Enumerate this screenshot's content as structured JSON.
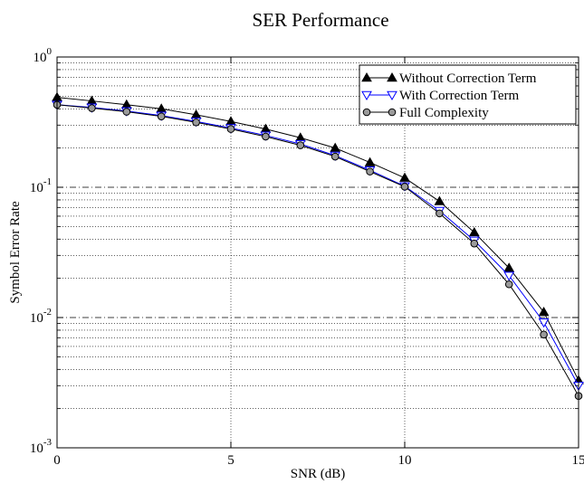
{
  "chart_data": {
    "type": "line",
    "title": "SER Performance",
    "xlabel": "SNR (dB)",
    "ylabel": "Symbol Error Rate",
    "xlim": [
      0,
      15
    ],
    "ylim": [
      0.001,
      1
    ],
    "yscale": "log",
    "grid": true,
    "legend_position": "top-right",
    "x_ticks": [
      "0",
      "5",
      "10",
      "15"
    ],
    "y_ticks": [
      {
        "base": "10",
        "exp": "0",
        "value": 1
      },
      {
        "base": "10",
        "exp": "-1",
        "value": 0.1
      },
      {
        "base": "10",
        "exp": "-2",
        "value": 0.01
      },
      {
        "base": "10",
        "exp": "-3",
        "value": 0.001
      }
    ],
    "x": [
      0,
      1,
      2,
      3,
      4,
      5,
      6,
      7,
      8,
      9,
      10,
      11,
      12,
      13,
      14,
      15
    ],
    "series": [
      {
        "name": "Without Correction Term",
        "color": "#000000",
        "marker": "triangle-up-filled",
        "values": [
          0.49,
          0.46,
          0.43,
          0.4,
          0.36,
          0.32,
          0.28,
          0.24,
          0.2,
          0.155,
          0.118,
          0.078,
          0.045,
          0.024,
          0.011,
          0.0033
        ]
      },
      {
        "name": "With Correction Term",
        "color": "#0000ff",
        "marker": "triangle-down-open",
        "values": [
          0.43,
          0.41,
          0.385,
          0.355,
          0.32,
          0.285,
          0.25,
          0.215,
          0.175,
          0.135,
          0.102,
          0.066,
          0.039,
          0.021,
          0.0092,
          0.003
        ]
      },
      {
        "name": "Full Complexity",
        "color": "#000000",
        "marker": "circle-gray",
        "values": [
          0.43,
          0.405,
          0.38,
          0.35,
          0.315,
          0.28,
          0.245,
          0.21,
          0.172,
          0.132,
          0.101,
          0.063,
          0.037,
          0.018,
          0.0074,
          0.0025
        ]
      }
    ]
  }
}
